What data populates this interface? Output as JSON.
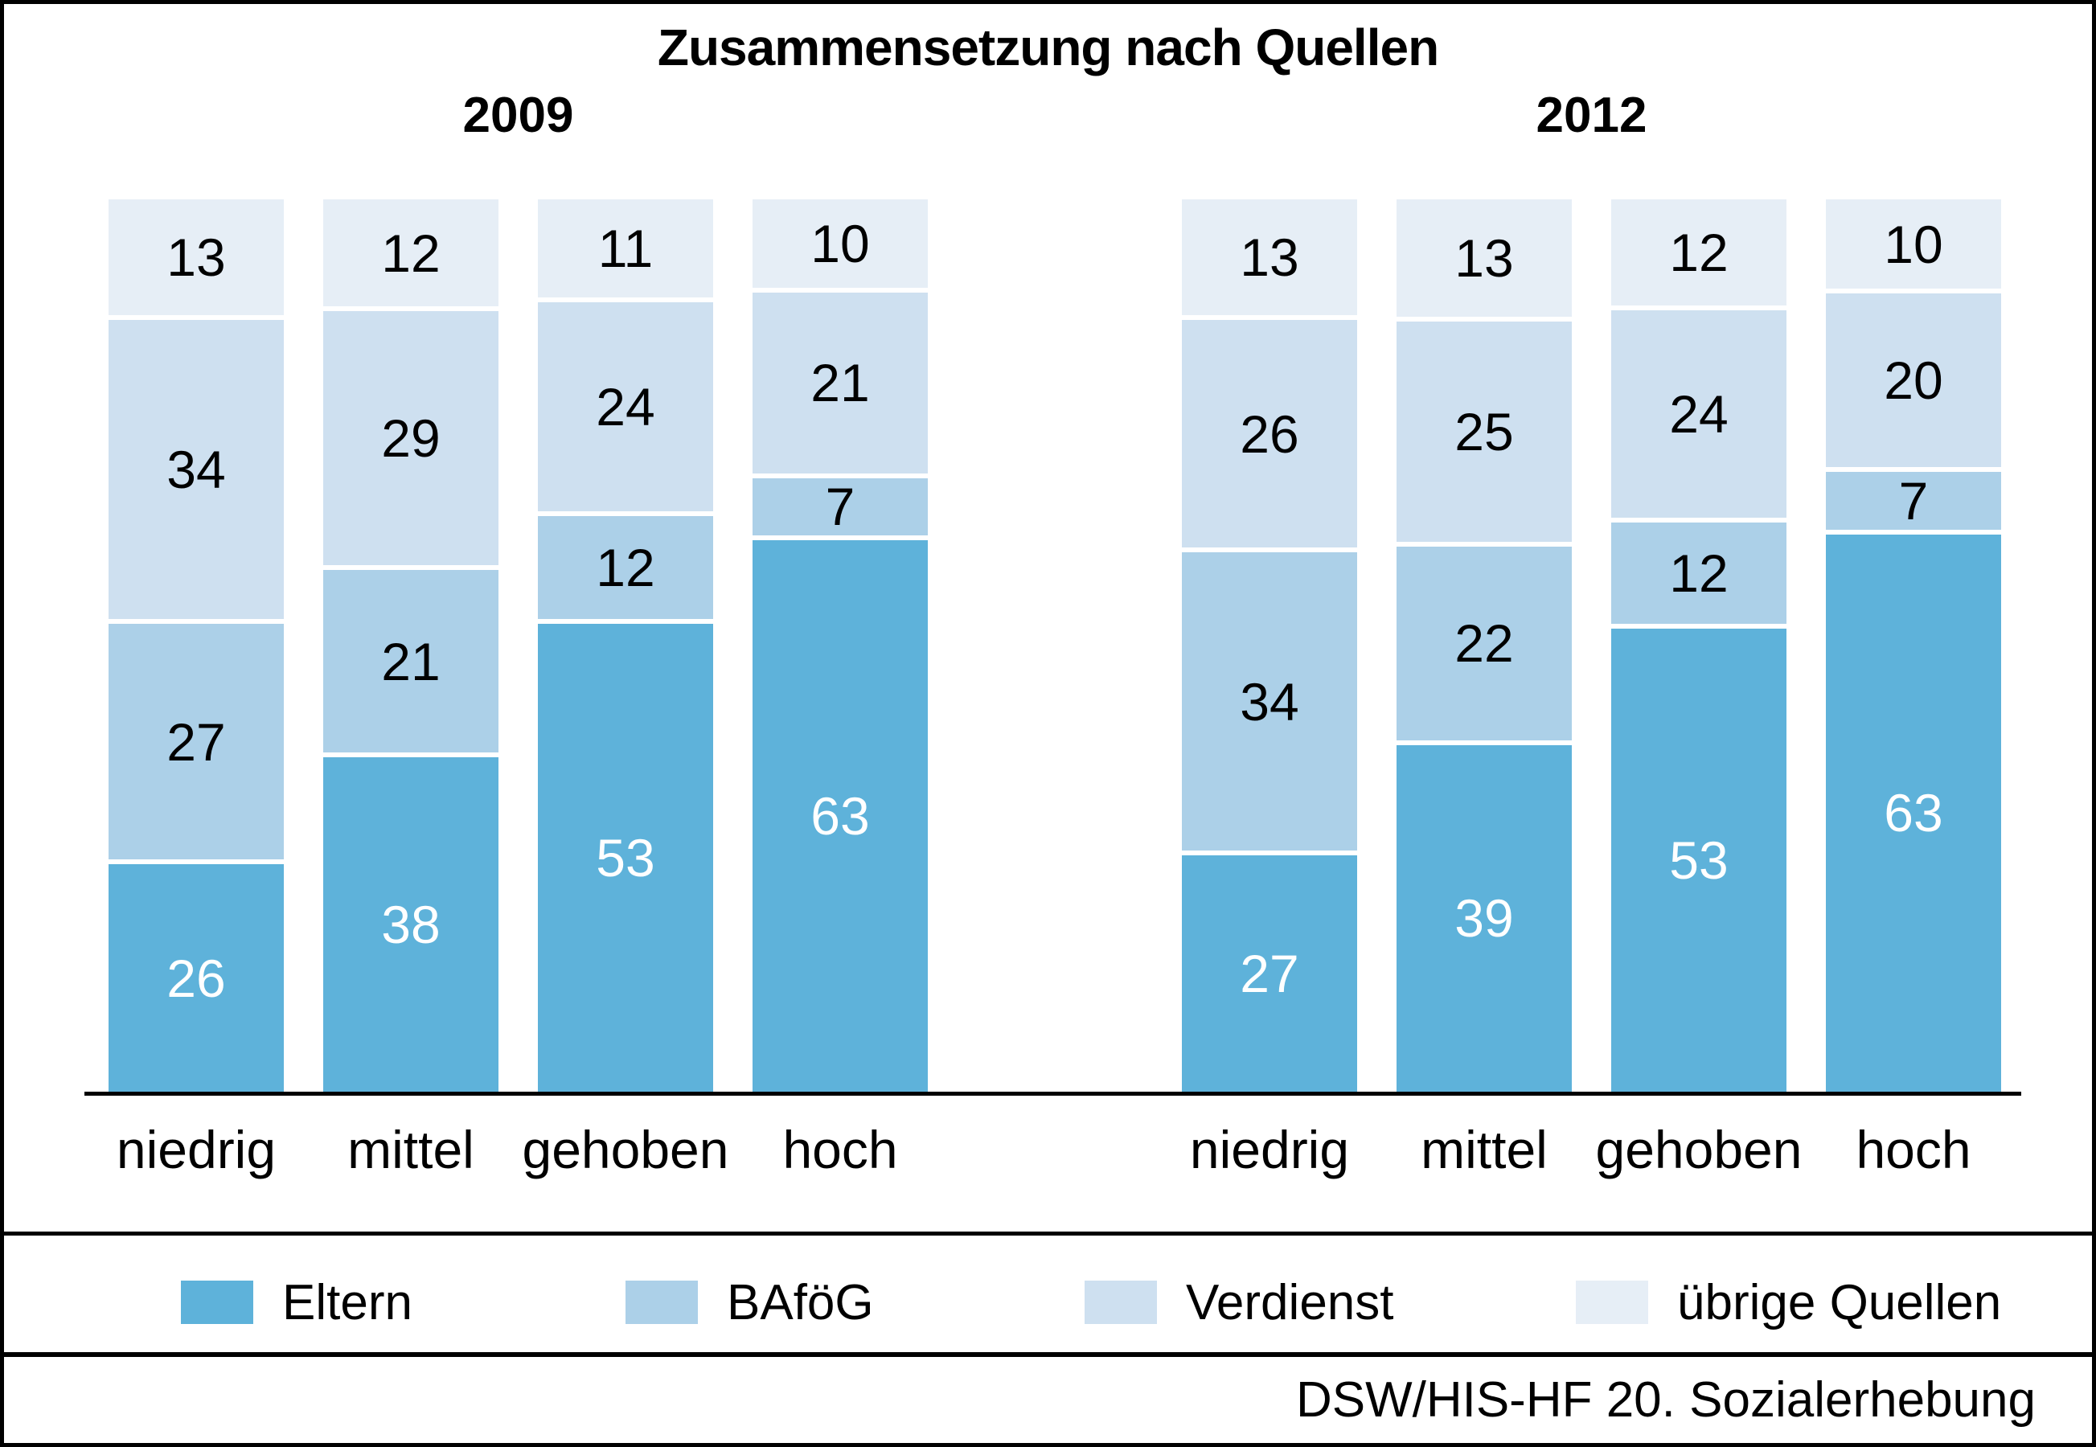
{
  "title": "Zusammensetzung nach Quellen",
  "source": "DSW/HIS-HF 20. Sozialerhebung",
  "legend": [
    {
      "label": "Eltern",
      "color": "#5EB2DA",
      "value_text_color": "#ffffff"
    },
    {
      "label": "BAföG",
      "color": "#ACD0E8",
      "value_text_color": "#000000"
    },
    {
      "label": "Verdienst",
      "color": "#CEE0F0",
      "value_text_color": "#000000"
    },
    {
      "label": "übrige Quellen",
      "color": "#E6EEF6",
      "value_text_color": "#000000"
    }
  ],
  "chart_data": {
    "type": "bar",
    "stacked": true,
    "value_unit": "percent",
    "title": "Zusammensetzung nach Quellen",
    "categories": [
      "niedrig",
      "mittel",
      "gehoben",
      "hoch"
    ],
    "series_order_bottom_to_top": [
      "Eltern",
      "BAföG",
      "Verdienst",
      "übrige Quellen"
    ],
    "groups": [
      {
        "label": "2009",
        "series": [
          {
            "name": "Eltern",
            "values": [
              26,
              38,
              53,
              63
            ]
          },
          {
            "name": "BAföG",
            "values": [
              27,
              21,
              12,
              7
            ]
          },
          {
            "name": "Verdienst",
            "values": [
              34,
              29,
              24,
              21
            ]
          },
          {
            "name": "übrige Quellen",
            "values": [
              13,
              12,
              11,
              10
            ]
          }
        ]
      },
      {
        "label": "2012",
        "series": [
          {
            "name": "Eltern",
            "values": [
              27,
              39,
              53,
              63
            ]
          },
          {
            "name": "BAföG",
            "values": [
              34,
              22,
              12,
              7
            ]
          },
          {
            "name": "Verdienst",
            "values": [
              26,
              25,
              24,
              20
            ]
          },
          {
            "name": "übrige Quellen",
            "values": [
              13,
              13,
              12,
              10
            ]
          }
        ]
      }
    ]
  }
}
